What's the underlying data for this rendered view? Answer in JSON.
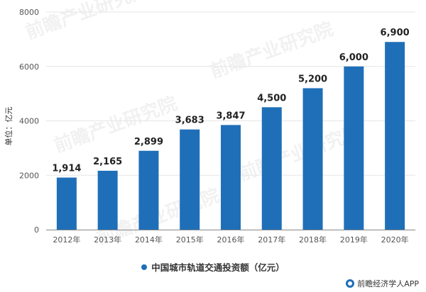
{
  "colors": {
    "bar": "#1f6fb8",
    "grid": "#e6e6e6",
    "axis": "#888888"
  },
  "watermark": "前瞻产业研究院",
  "source": {
    "text": "前瞻经济学人APP",
    "icon": "qianzhan-logo-icon"
  },
  "chart_data": {
    "type": "bar",
    "title": "",
    "xlabel": "",
    "ylabel": "单位：亿元",
    "ylim": [
      0,
      8000
    ],
    "yticks": [
      "0",
      "2000",
      "4000",
      "6000",
      "8000"
    ],
    "categories": [
      "2012年",
      "2013年",
      "2014年",
      "2015年",
      "2016年",
      "2017年",
      "2018年",
      "2019年",
      "2020年"
    ],
    "series": [
      {
        "name": "中国城市轨道交通投资额（亿元）",
        "values": [
          1914,
          2165,
          2899,
          3683,
          3847,
          4500,
          5200,
          6000,
          6900
        ],
        "labels": [
          "1,914",
          "2,165",
          "2,899",
          "3,683",
          "3,847",
          "4,500",
          "5,200",
          "6,000",
          "6,900"
        ]
      }
    ],
    "grid": true,
    "legend_position": "bottom"
  }
}
